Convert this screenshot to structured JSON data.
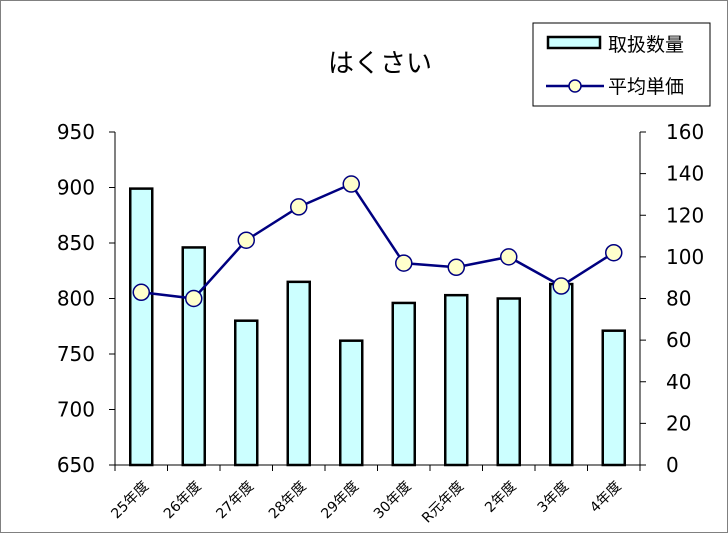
{
  "chart_data": {
    "type": "bar",
    "title": "はくさい",
    "categories": [
      "25年度",
      "26年度",
      "27年度",
      "28年度",
      "29年度",
      "30年度",
      "R元年度",
      "2年度",
      "3年度",
      "4年度"
    ],
    "series": [
      {
        "name": "取扱数量",
        "type": "bar",
        "axis": "left",
        "values": [
          899,
          846,
          780,
          815,
          762,
          796,
          803,
          800,
          813,
          771
        ],
        "color": "#ccffff",
        "border": "#000000"
      },
      {
        "name": "平均単価",
        "type": "line",
        "axis": "right",
        "values": [
          83,
          80,
          108,
          124,
          135,
          97,
          95,
          100,
          86,
          102
        ],
        "line_color": "#000080",
        "marker_fill": "#ffffcc"
      }
    ],
    "y_left": {
      "min": 650,
      "max": 950,
      "ticks": [
        650,
        700,
        750,
        800,
        850,
        900,
        950
      ]
    },
    "y_right": {
      "min": 0,
      "max": 160,
      "ticks": [
        0,
        20,
        40,
        60,
        80,
        100,
        120,
        140,
        160
      ]
    },
    "xlabel": "",
    "ylabel": "",
    "grid": false,
    "legend_position": "top-right"
  }
}
